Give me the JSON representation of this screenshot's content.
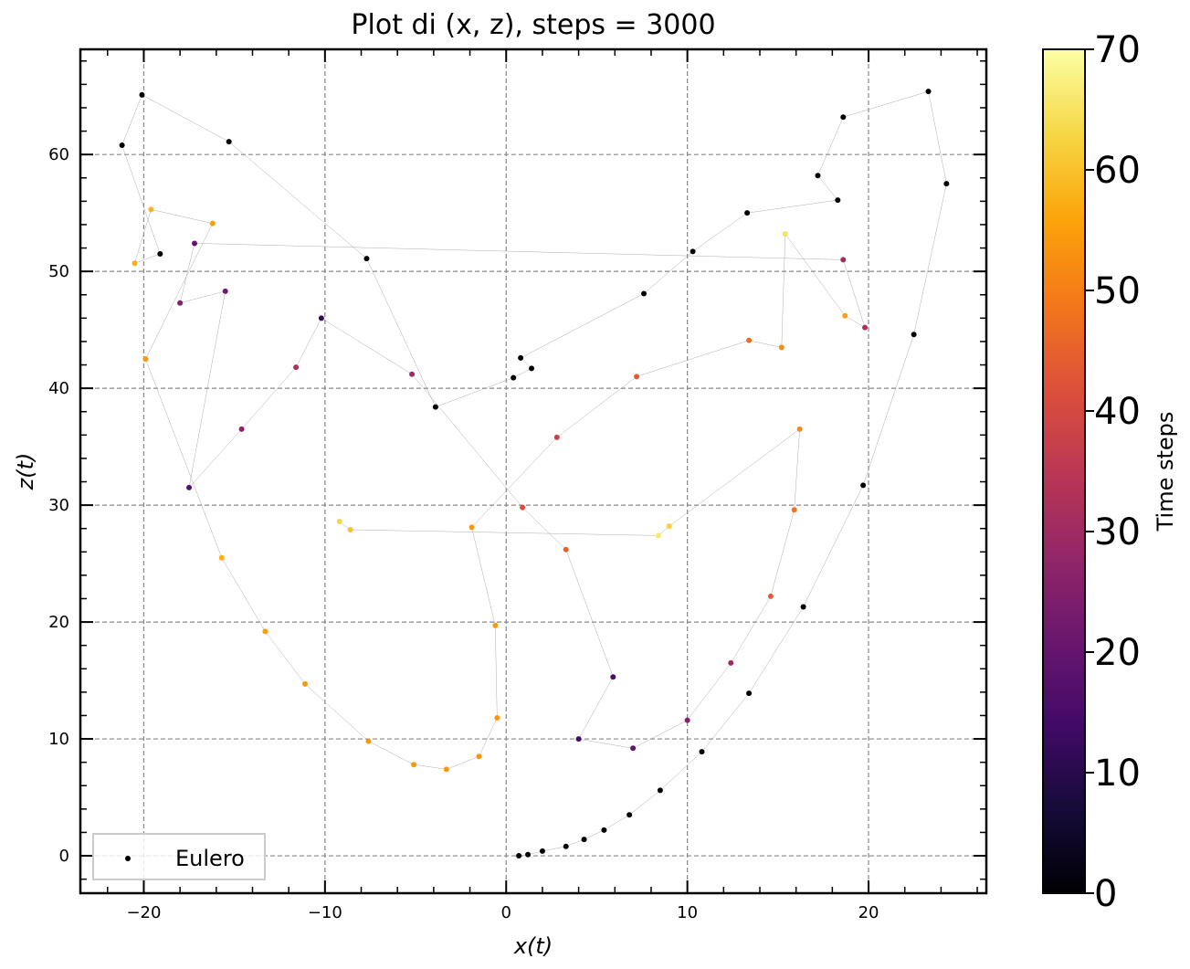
{
  "chart_data": {
    "type": "scatter",
    "title": "Plot di (x, z), steps = 3000",
    "xlabel": "x(t)",
    "ylabel": "z(t)",
    "xlim": [
      -23.5,
      26.5
    ],
    "ylim": [
      -3.2,
      69
    ],
    "x_ticks": [
      -20,
      -10,
      0,
      10,
      20
    ],
    "y_ticks": [
      0,
      10,
      20,
      30,
      40,
      50,
      60
    ],
    "grid": true,
    "legend": {
      "placement": "lower-left",
      "entries": [
        "Eulero"
      ]
    },
    "colorbar": {
      "label": "Time steps",
      "range": [
        0,
        70
      ],
      "ticks": [
        0,
        10,
        20,
        30,
        40,
        50,
        60,
        70
      ],
      "colormap": "inferno"
    },
    "series": [
      {
        "name": "Eulero",
        "marker_connections": "gray thin lines",
        "points_sample": [
          {
            "x": 0.7,
            "z": 0.0,
            "t": 0
          },
          {
            "x": 1.2,
            "z": 0.1,
            "t": 0
          },
          {
            "x": 2.0,
            "z": 0.4,
            "t": 0
          },
          {
            "x": 3.3,
            "z": 0.8,
            "t": 0
          },
          {
            "x": 4.3,
            "z": 1.4,
            "t": 0
          },
          {
            "x": 5.4,
            "z": 2.2,
            "t": 0
          },
          {
            "x": 6.8,
            "z": 3.5,
            "t": 0
          },
          {
            "x": 8.5,
            "z": 5.6,
            "t": 0
          },
          {
            "x": 10.8,
            "z": 8.9,
            "t": 0
          },
          {
            "x": 13.4,
            "z": 13.9,
            "t": 0
          },
          {
            "x": 16.4,
            "z": 21.3,
            "t": 0
          },
          {
            "x": 19.7,
            "z": 31.7,
            "t": 0
          },
          {
            "x": 22.5,
            "z": 44.6,
            "t": 0
          },
          {
            "x": 24.3,
            "z": 57.5,
            "t": 0
          },
          {
            "x": 23.3,
            "z": 65.4,
            "t": 0
          },
          {
            "x": 18.6,
            "z": 63.2,
            "t": 0
          },
          {
            "x": 17.2,
            "z": 58.2,
            "t": 0
          },
          {
            "x": 18.3,
            "z": 56.1,
            "t": 0
          },
          {
            "x": 13.3,
            "z": 55.0,
            "t": 0
          },
          {
            "x": 10.3,
            "z": 51.7,
            "t": 0
          },
          {
            "x": 7.6,
            "z": 48.1,
            "t": 0
          },
          {
            "x": 0.8,
            "z": 42.6,
            "t": 0
          },
          {
            "x": 1.4,
            "z": 41.7,
            "t": 0
          },
          {
            "x": 0.4,
            "z": 40.9,
            "t": 0
          },
          {
            "x": -3.9,
            "z": 38.4,
            "t": 0
          },
          {
            "x": -7.7,
            "z": 51.1,
            "t": 0
          },
          {
            "x": -15.3,
            "z": 61.1,
            "t": 0
          },
          {
            "x": -20.1,
            "z": 65.1,
            "t": 0
          },
          {
            "x": -21.2,
            "z": 60.8,
            "t": 0
          },
          {
            "x": -19.1,
            "z": 51.5,
            "t": 0
          },
          {
            "x": -20.5,
            "z": 50.7,
            "t": 57
          },
          {
            "x": -19.6,
            "z": 55.3,
            "t": 58
          },
          {
            "x": -16.2,
            "z": 54.1,
            "t": 55
          },
          {
            "x": -19.9,
            "z": 42.5,
            "t": 54
          },
          {
            "x": -15.7,
            "z": 25.5,
            "t": 57
          },
          {
            "x": -13.3,
            "z": 19.2,
            "t": 55
          },
          {
            "x": -11.1,
            "z": 14.7,
            "t": 54
          },
          {
            "x": -7.6,
            "z": 9.8,
            "t": 54
          },
          {
            "x": -5.1,
            "z": 7.8,
            "t": 54
          },
          {
            "x": -3.3,
            "z": 7.4,
            "t": 54
          },
          {
            "x": -1.5,
            "z": 8.5,
            "t": 54
          },
          {
            "x": -0.5,
            "z": 11.8,
            "t": 54
          },
          {
            "x": -0.6,
            "z": 19.7,
            "t": 54
          },
          {
            "x": -1.9,
            "z": 28.1,
            "t": 54
          },
          {
            "x": 2.8,
            "z": 35.8,
            "t": 38
          },
          {
            "x": 7.2,
            "z": 41.0,
            "t": 44
          },
          {
            "x": 13.4,
            "z": 44.1,
            "t": 47
          },
          {
            "x": 15.2,
            "z": 43.5,
            "t": 52
          },
          {
            "x": 15.4,
            "z": 53.2,
            "t": 65
          },
          {
            "x": 18.7,
            "z": 46.2,
            "t": 55
          },
          {
            "x": 19.8,
            "z": 45.2,
            "t": 32
          },
          {
            "x": 18.6,
            "z": 51.0,
            "t": 30
          },
          {
            "x": -17.2,
            "z": 52.4,
            "t": 20
          },
          {
            "x": -18.0,
            "z": 47.3,
            "t": 25
          },
          {
            "x": -15.5,
            "z": 48.3,
            "t": 22
          },
          {
            "x": -17.5,
            "z": 31.5,
            "t": 18
          },
          {
            "x": -14.6,
            "z": 36.5,
            "t": 27
          },
          {
            "x": -11.6,
            "z": 41.8,
            "t": 32
          },
          {
            "x": -10.2,
            "z": 46.0,
            "t": 12
          },
          {
            "x": -5.2,
            "z": 41.2,
            "t": 30
          },
          {
            "x": 0.9,
            "z": 29.8,
            "t": 41
          },
          {
            "x": 3.3,
            "z": 26.2,
            "t": 45
          },
          {
            "x": 5.9,
            "z": 15.3,
            "t": 16
          },
          {
            "x": 4.0,
            "z": 10.0,
            "t": 14
          },
          {
            "x": 7.0,
            "z": 9.2,
            "t": 20
          },
          {
            "x": 10.0,
            "z": 11.6,
            "t": 26
          },
          {
            "x": 12.4,
            "z": 16.5,
            "t": 30
          },
          {
            "x": 14.6,
            "z": 22.2,
            "t": 44
          },
          {
            "x": 15.9,
            "z": 29.6,
            "t": 48
          },
          {
            "x": 16.2,
            "z": 36.5,
            "t": 52
          },
          {
            "x": 9.0,
            "z": 28.2,
            "t": 62
          },
          {
            "x": 8.4,
            "z": 27.4,
            "t": 66
          },
          {
            "x": -8.6,
            "z": 27.9,
            "t": 60
          },
          {
            "x": -9.2,
            "z": 28.6,
            "t": 63
          }
        ]
      }
    ]
  }
}
